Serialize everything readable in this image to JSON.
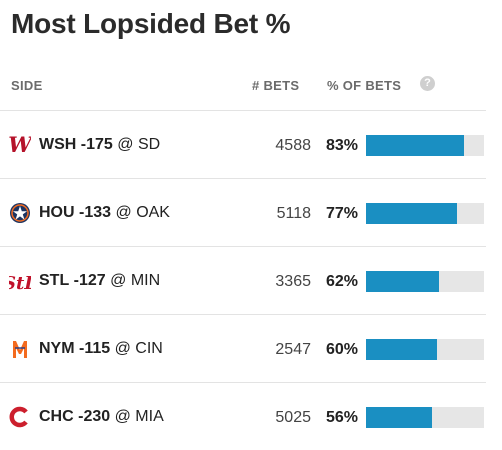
{
  "title": "Most Lopsided Bet %",
  "headers": {
    "side": "SIDE",
    "bets": "# BETS",
    "pct": "% OF BETS",
    "help": "?"
  },
  "rows": [
    {
      "abbr": "WSH",
      "line": "-175",
      "opp": "@ SD",
      "bets": "4588",
      "pct_label": "83%",
      "pct": 83,
      "logo": "nationals-logo",
      "color": "#b5122a"
    },
    {
      "abbr": "HOU",
      "line": "-133",
      "opp": "@ OAK",
      "bets": "5118",
      "pct_label": "77%",
      "pct": 77,
      "logo": "astros-logo",
      "color": "#1d3461"
    },
    {
      "abbr": "STL",
      "line": "-127",
      "opp": "@ MIN",
      "bets": "3365",
      "pct_label": "62%",
      "pct": 62,
      "logo": "cardinals-logo",
      "color": "#c0112a"
    },
    {
      "abbr": "NYM",
      "line": "-115",
      "opp": "@ CIN",
      "bets": "2547",
      "pct_label": "60%",
      "pct": 60,
      "logo": "mets-logo",
      "color": "#f36b1f"
    },
    {
      "abbr": "CHC",
      "line": "-230",
      "opp": "@ MIA",
      "bets": "5025",
      "pct_label": "56%",
      "pct": 56,
      "logo": "cubs-logo",
      "color": "#cc1f2d"
    }
  ]
}
